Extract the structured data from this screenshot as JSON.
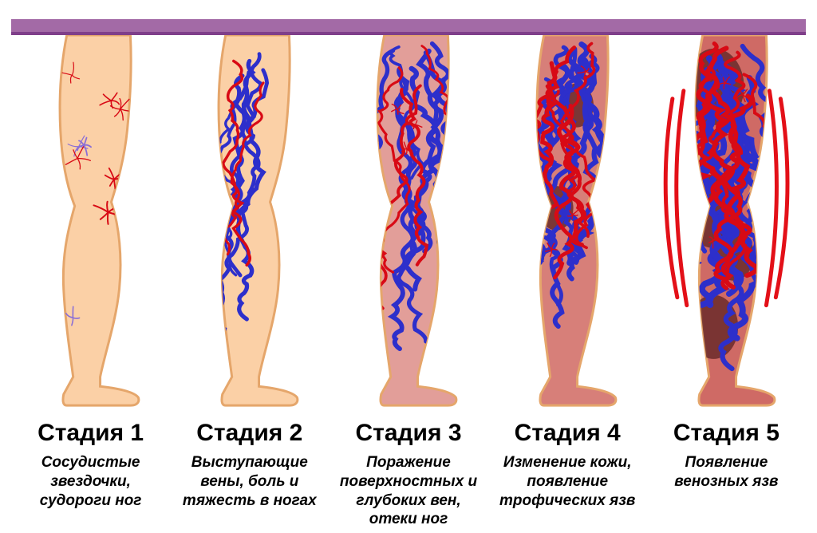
{
  "infographic": {
    "type": "infographic",
    "language": "ru",
    "background_color": "#ffffff",
    "top_bar_color": "#a36aa6",
    "top_bar_shadow": "#7f3f8a",
    "title_fontsize": 30,
    "title_fontweight": 800,
    "desc_fontsize": 19,
    "desc_fontweight": 700,
    "desc_style": "italic",
    "skin_outline": "#e5a66b",
    "vein_red": "#d80a15",
    "vein_blue": "#2d2fcb",
    "vein_purple": "#8a6ed6",
    "dark_patch": "#6b2a2a",
    "pain_wave": "#e31018",
    "stages": [
      {
        "id": "stage-1",
        "title": "Стадия 1",
        "description": "Сосудистые звездочки, судороги ног",
        "skin_color": "#fbd0a6",
        "severity": 1
      },
      {
        "id": "stage-2",
        "title": "Стадия 2",
        "description": "Выступающие вены, боль и тяжесть в ногах",
        "skin_color": "#fbd0a6",
        "severity": 2
      },
      {
        "id": "stage-3",
        "title": "Стадия 3",
        "description": "Поражение поверхностных и глубоких вен, отеки ног",
        "skin_color": "#e29e99",
        "severity": 3
      },
      {
        "id": "stage-4",
        "title": "Стадия 4",
        "description": "Изменение кожи, появление трофических язв",
        "skin_color": "#d77f79",
        "severity": 4
      },
      {
        "id": "stage-5",
        "title": "Стадия 5",
        "description": "Появление венозных язв",
        "skin_color": "#cf6a65",
        "severity": 5,
        "pain_waves": true
      }
    ]
  }
}
